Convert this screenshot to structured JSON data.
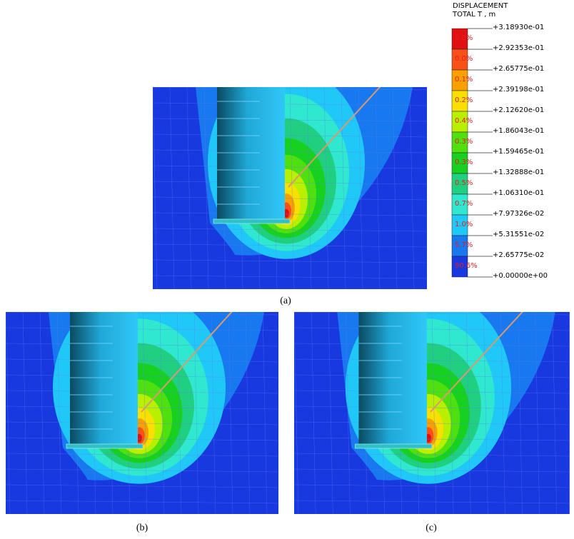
{
  "legend": {
    "title": [
      "DISPLACEMENT",
      "TOTAL T , m"
    ],
    "levels": [
      "+3.18930e-01",
      "+2.92353e-01",
      "+2.65775e-01",
      "+2.39198e-01",
      "+2.12620e-01",
      "+1.86043e-01",
      "+1.59465e-01",
      "+1.32888e-01",
      "+1.06310e-01",
      "+7.97326e-02",
      "+5.31551e-02",
      "+2.65775e-02",
      "+0.00000e+00"
    ],
    "percentages": [
      "0.0%",
      "0.0%",
      "0.1%",
      "0.2%",
      "0.4%",
      "0.3%",
      "0.3%",
      "0.5%",
      "0.7%",
      "1.0%",
      "5.7%",
      "90.6%"
    ],
    "colors": [
      "#e01010",
      "#f85018",
      "#f8a000",
      "#f8e000",
      "#b8f000",
      "#50e010",
      "#18d020",
      "#20d080",
      "#30e8d0",
      "#20c8f8",
      "#1878f0",
      "#1838e0"
    ]
  },
  "captions": [
    "(a)",
    "(b)",
    "(c)"
  ]
}
